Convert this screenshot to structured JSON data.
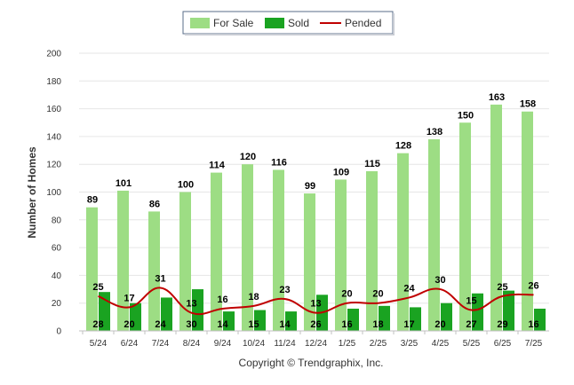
{
  "chart_data": {
    "type": "bar",
    "categories": [
      "5/24",
      "6/24",
      "7/24",
      "8/24",
      "9/24",
      "10/24",
      "11/24",
      "12/24",
      "1/25",
      "2/25",
      "3/25",
      "4/25",
      "5/25",
      "6/25",
      "7/25"
    ],
    "series": [
      {
        "name": "For Sale",
        "kind": "bar",
        "color": "#9ddd84",
        "values": [
          89,
          101,
          86,
          100,
          114,
          120,
          116,
          99,
          109,
          115,
          128,
          138,
          150,
          163,
          158
        ]
      },
      {
        "name": "Sold",
        "kind": "bar",
        "color": "#1aa321",
        "values": [
          28,
          20,
          24,
          30,
          14,
          15,
          14,
          26,
          16,
          18,
          17,
          20,
          27,
          29,
          16
        ]
      },
      {
        "name": "Pended",
        "kind": "line",
        "color": "#c00000",
        "values": [
          25,
          17,
          31,
          13,
          16,
          18,
          23,
          13,
          20,
          20,
          24,
          30,
          15,
          25,
          26
        ]
      }
    ],
    "xlabel": "",
    "ylabel": "Number of Homes",
    "ylim": [
      0,
      200
    ],
    "yticks": [
      0,
      20,
      40,
      60,
      80,
      100,
      120,
      140,
      160,
      180,
      200
    ],
    "grid": true,
    "legend_position": "top-center"
  },
  "credit": "Copyright © Trendgraphix, Inc."
}
